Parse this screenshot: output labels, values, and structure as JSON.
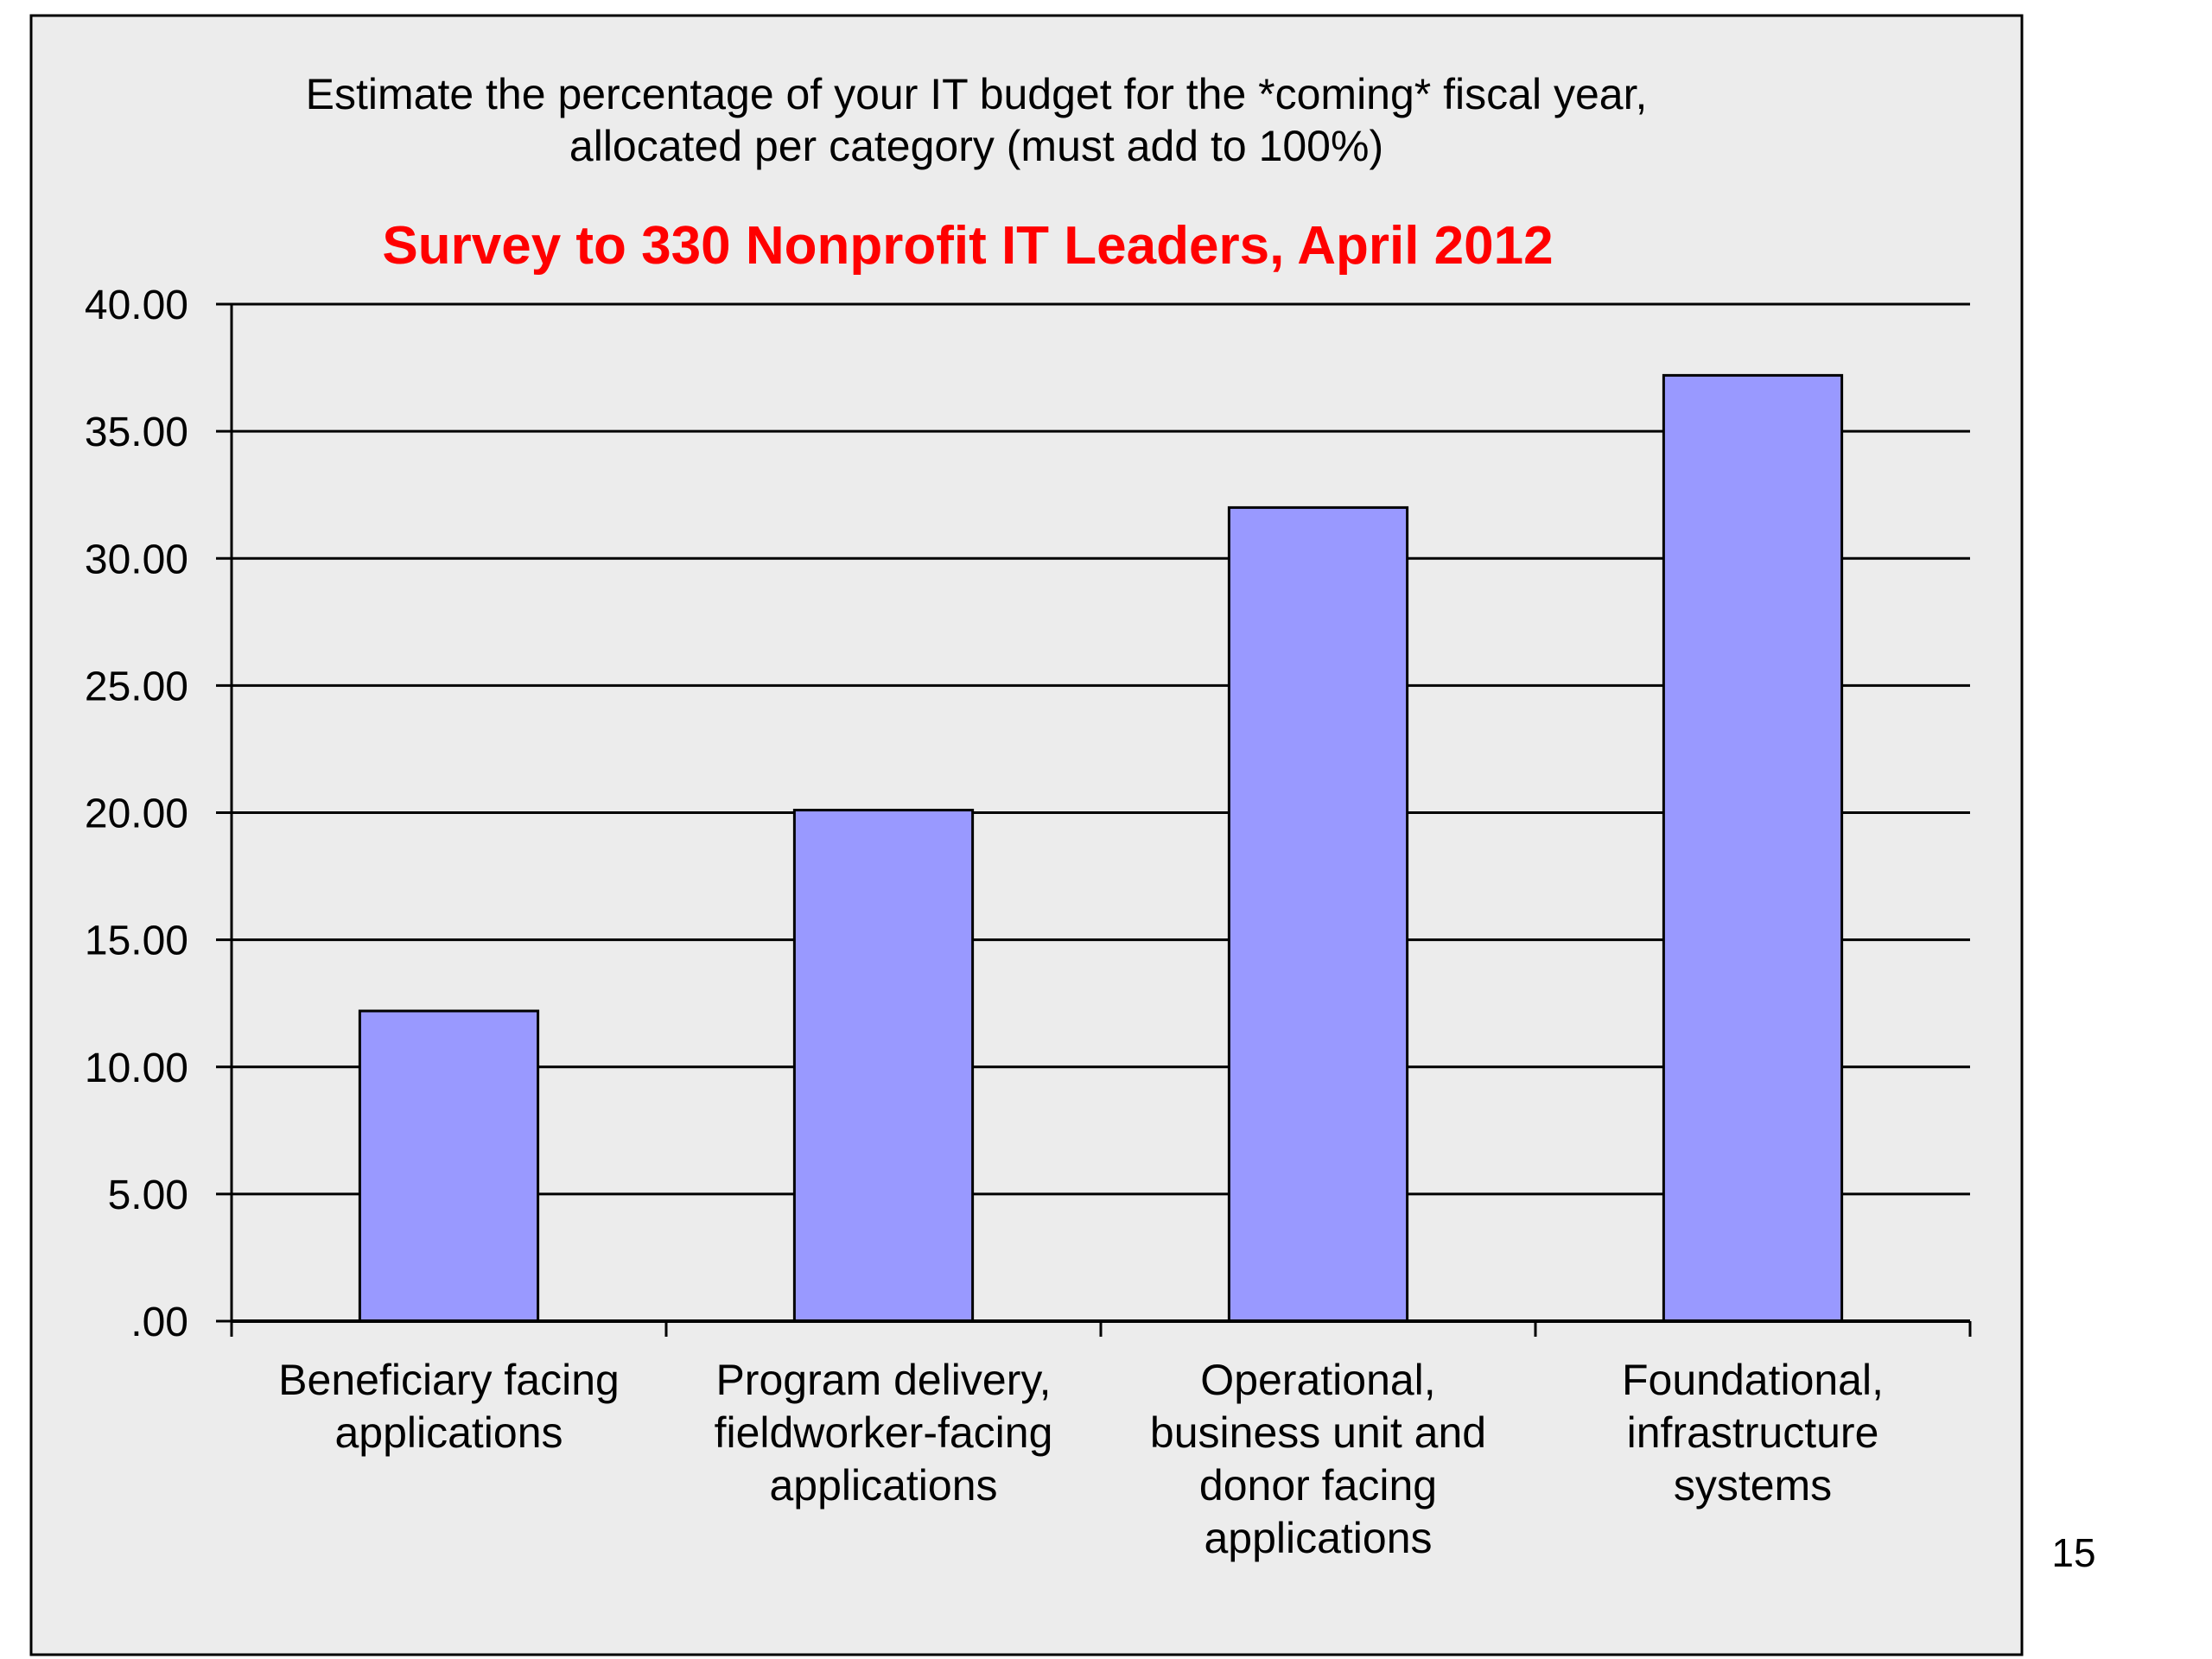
{
  "slide": {
    "page_number": "15"
  },
  "chart_data": {
    "type": "bar",
    "title": "Estimate the percentage of your IT budget for the *coming* fiscal year,\nallocated per category (must add to 100%)",
    "subtitle": "Survey to 330 Nonprofit IT Leaders, April 2012",
    "xlabel": "",
    "ylabel": "",
    "categories": [
      "Beneficiary facing\napplications",
      "Program  delivery,\nfieldworker-facing\napplications",
      "Operational,\nbusiness unit and\ndonor facing\napplications",
      "Foundational,\ninfrastructure\nsystems"
    ],
    "values": [
      12.2,
      20.1,
      32.0,
      37.2
    ],
    "ylim": [
      0,
      40
    ],
    "yticks": [
      ".00",
      "5.00",
      "10.00",
      "15.00",
      "20.00",
      "25.00",
      "30.00",
      "35.00",
      "40.00"
    ],
    "grid": true,
    "legend": "none",
    "colors": {
      "bar_fill": "#9999ff",
      "bar_stroke": "#000000",
      "plot_background": "#ececec",
      "gridline": "#000000",
      "subtitle": "#ff0000",
      "title": "#000000"
    }
  }
}
